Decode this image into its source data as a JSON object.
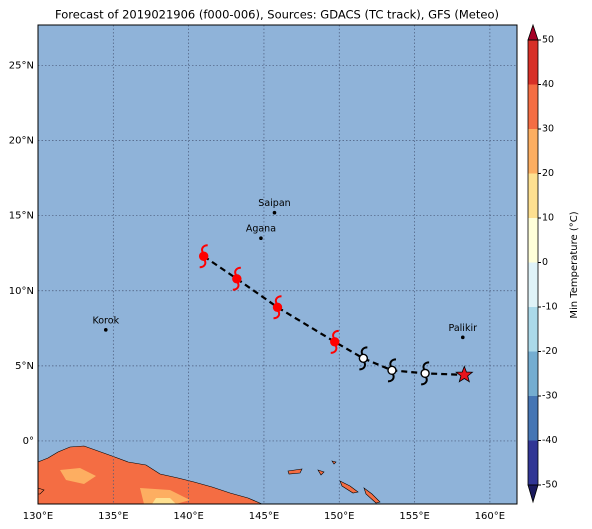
{
  "chart_data": {
    "type": "map",
    "title": "Forecast of 2019021906 (f000-006), Sources: GDACS (TC track), GFS (Meteo)",
    "xlim": [
      130,
      161.8
    ],
    "ylim": [
      -4.2,
      27.7
    ],
    "xticks": [
      {
        "value": 130,
        "label": "130°E"
      },
      {
        "value": 135,
        "label": "135°E"
      },
      {
        "value": 140,
        "label": "140°E"
      },
      {
        "value": 145,
        "label": "145°E"
      },
      {
        "value": 150,
        "label": "150°E"
      },
      {
        "value": 155,
        "label": "155°E"
      },
      {
        "value": 160,
        "label": "160°E"
      }
    ],
    "yticks": [
      {
        "value": 0,
        "label": "0°"
      },
      {
        "value": 5,
        "label": "5°N"
      },
      {
        "value": 10,
        "label": "10°N"
      },
      {
        "value": 15,
        "label": "15°N"
      },
      {
        "value": 20,
        "label": "20°N"
      },
      {
        "value": 25,
        "label": "25°N"
      }
    ],
    "grid": true,
    "ocean_color": "#8fb3d9",
    "land_color": "#f46d43",
    "places": [
      {
        "name": "Saipan",
        "lon": 145.7,
        "lat": 15.2
      },
      {
        "name": "Agana",
        "lon": 144.8,
        "lat": 13.5
      },
      {
        "name": "Korok",
        "lon": 134.5,
        "lat": 7.4
      },
      {
        "name": "Palikir",
        "lon": 158.2,
        "lat": 6.9
      }
    ],
    "track": {
      "lon": [
        141.0,
        143.2,
        145.9,
        149.7,
        151.6,
        153.5,
        155.7
      ],
      "lat": [
        12.3,
        10.8,
        8.9,
        6.6,
        5.5,
        4.7,
        4.5
      ],
      "colors": [
        "#ff0000",
        "#ff0000",
        "#ff0000",
        "#ff0000",
        "#ffffff",
        "#ffffff",
        "#ffffff"
      ]
    },
    "position": {
      "lon": 158.3,
      "lat": 4.4,
      "color": "#e8141c"
    },
    "colorbar": {
      "label": "Min Temperature (°C)",
      "lim": [
        -50,
        50
      ],
      "ticks": [
        50,
        40,
        30,
        20,
        10,
        0,
        -10,
        -20,
        -30,
        -40,
        -50
      ],
      "colors": [
        "#313695",
        "#4575b4",
        "#74add1",
        "#abd9e9",
        "#e0f3f8",
        "#ffffd9",
        "#fee090",
        "#fdae61",
        "#f46d43",
        "#d73027"
      ],
      "under_color": "#1a1a5e",
      "over_color": "#a50026"
    }
  }
}
